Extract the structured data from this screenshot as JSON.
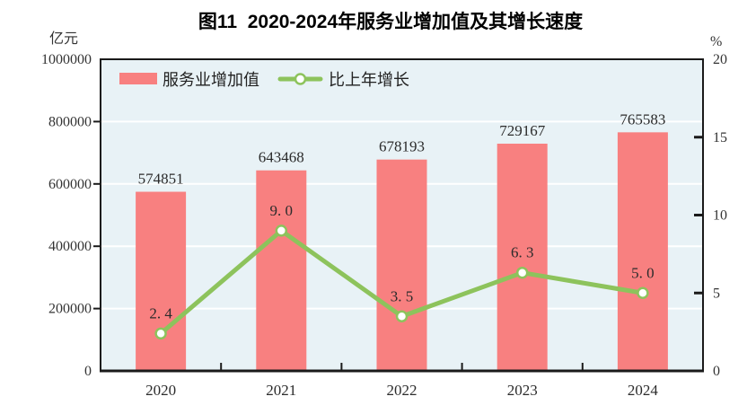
{
  "chart_data": {
    "type": "bar+line",
    "title": "图11  2020-2024年服务业增加值及其增长速度",
    "categories": [
      "2020",
      "2021",
      "2022",
      "2023",
      "2024"
    ],
    "series": [
      {
        "name": "服务业增加值",
        "type": "bar",
        "axis": "left",
        "color": "#F88080",
        "values": [
          574851,
          643468,
          678193,
          729167,
          765583
        ],
        "labels": [
          "574851",
          "643468",
          "678193",
          "729167",
          "765583"
        ]
      },
      {
        "name": "比上年增长",
        "type": "line",
        "axis": "right",
        "color": "#8DC35C",
        "values": [
          2.4,
          9.0,
          3.5,
          6.3,
          5.0
        ],
        "labels": [
          "2. 4",
          "9. 0",
          "3. 5",
          "6. 3",
          "5. 0"
        ]
      }
    ],
    "left_axis": {
      "unit": "亿元",
      "min": 0,
      "max": 1000000,
      "tick_labels": [
        "0",
        "200000",
        "400000",
        "600000",
        "800000",
        "1000000"
      ]
    },
    "right_axis": {
      "unit": "%",
      "min": 0,
      "max": 20,
      "tick_labels": [
        "0",
        "5",
        "10",
        "15",
        "20"
      ]
    },
    "legend_position": "top-left-inside",
    "grid": true,
    "style": {
      "plot_bg": "#E8F2F6",
      "grid_color": "#FFFFFF",
      "axis_color": "#1A1A1A",
      "tick_text_color": "#333333",
      "label_text_color": "#2B2B2B",
      "marker_fill": "#FFFFFF"
    }
  }
}
